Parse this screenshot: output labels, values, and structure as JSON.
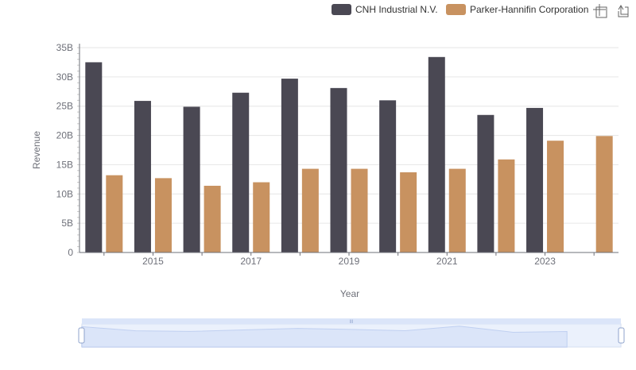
{
  "colors": {
    "series_0": "#4a4853",
    "series_1": "#c89260",
    "grid": "#e6e6e6",
    "axis": "#6e7079",
    "zoom_fill": "#dbe5f9",
    "zoom_line": "#a0b5e6",
    "zoom_handle": "#ffffff"
  },
  "toolbox": {
    "zoom_icon": "data-zoom-icon",
    "restore_icon": "restore-icon"
  },
  "zoom_handle_glyph": "III",
  "chart_data": {
    "type": "bar",
    "xlabel": "Year",
    "ylabel": "Revenue",
    "categories": [
      "2014",
      "2015",
      "2016",
      "2017",
      "2018",
      "2019",
      "2020",
      "2021",
      "2022",
      "2023",
      "2024"
    ],
    "x_tick_labels": [
      "2015",
      "2017",
      "2019",
      "2021",
      "2023"
    ],
    "y_tick_labels": [
      "0",
      "5B",
      "10B",
      "15B",
      "20B",
      "25B",
      "30B",
      "35B"
    ],
    "ylim": [
      0,
      35000000000
    ],
    "grid": true,
    "legend_position": "top-right",
    "series": [
      {
        "name": "CNH Industrial N.V.",
        "values": [
          32500000000,
          25900000000,
          24900000000,
          27300000000,
          29700000000,
          28100000000,
          26000000000,
          33400000000,
          23500000000,
          24700000000,
          null
        ]
      },
      {
        "name": "Parker-Hannifin Corporation",
        "values": [
          13200000000,
          12700000000,
          11400000000,
          12000000000,
          14300000000,
          14300000000,
          13700000000,
          14300000000,
          15900000000,
          19100000000,
          19900000000
        ]
      }
    ]
  }
}
